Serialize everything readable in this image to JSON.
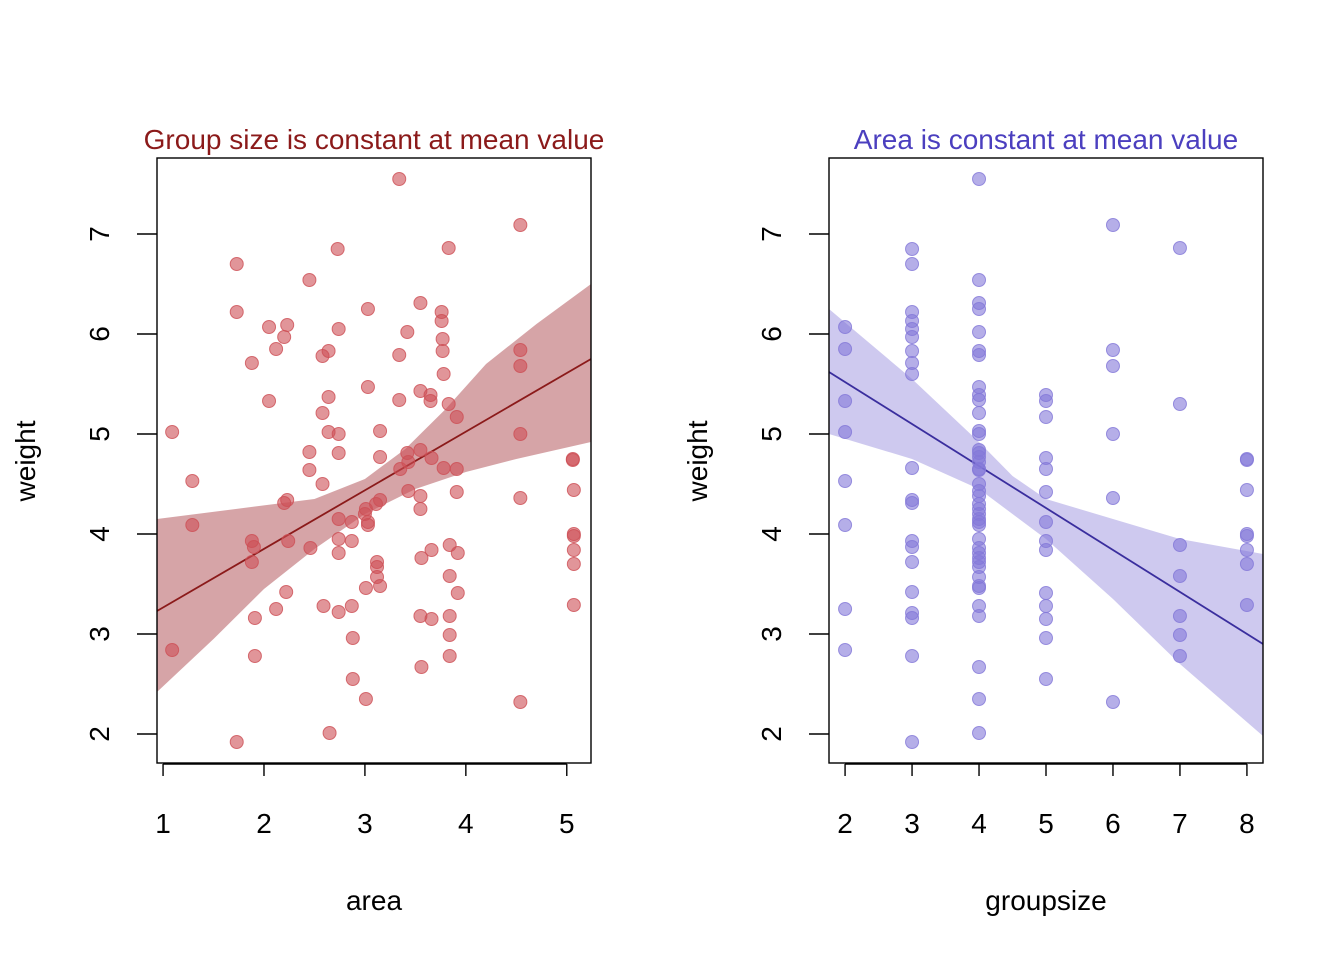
{
  "chart_data": [
    {
      "type": "scatter",
      "title": "Group size is constant at mean value",
      "xlabel": "area",
      "ylabel": "weight",
      "xticks": [
        "1",
        "2",
        "3",
        "4",
        "5"
      ],
      "yticks": [
        "2",
        "3",
        "4",
        "5",
        "6",
        "7"
      ],
      "xlim": [
        0.94,
        5.24
      ],
      "ylim": [
        1.71,
        7.76
      ],
      "colors": {
        "title": "#8b1a1a",
        "points": "#cd4f55",
        "line": "#8b1a1a",
        "band": "#b55a5e"
      },
      "fit_line": [
        [
          0.94,
          3.23
        ],
        [
          5.24,
          5.75
        ]
      ],
      "band_upper": [
        [
          0.94,
          4.15
        ],
        [
          2.5,
          4.35
        ],
        [
          3.0,
          4.55
        ],
        [
          3.4,
          4.85
        ],
        [
          3.8,
          5.25
        ],
        [
          4.2,
          5.7
        ],
        [
          4.7,
          6.1
        ],
        [
          5.24,
          6.5
        ]
      ],
      "band_lower": [
        [
          0.94,
          2.42
        ],
        [
          1.5,
          2.95
        ],
        [
          2.0,
          3.45
        ],
        [
          2.5,
          3.85
        ],
        [
          3.0,
          4.2
        ],
        [
          3.5,
          4.45
        ],
        [
          4.0,
          4.62
        ],
        [
          4.5,
          4.75
        ],
        [
          5.24,
          4.92
        ]
      ],
      "points": [
        [
          1.09,
          5.02
        ],
        [
          1.09,
          2.84
        ],
        [
          1.29,
          4.53
        ],
        [
          1.29,
          4.09
        ],
        [
          1.73,
          6.7
        ],
        [
          1.73,
          6.22
        ],
        [
          1.73,
          1.92
        ],
        [
          1.88,
          5.71
        ],
        [
          1.88,
          3.93
        ],
        [
          1.88,
          3.72
        ],
        [
          1.9,
          3.87
        ],
        [
          1.91,
          3.16
        ],
        [
          1.91,
          2.78
        ],
        [
          2.05,
          6.07
        ],
        [
          2.05,
          5.33
        ],
        [
          2.12,
          5.85
        ],
        [
          2.12,
          3.25
        ],
        [
          2.2,
          5.97
        ],
        [
          2.2,
          4.31
        ],
        [
          2.22,
          3.42
        ],
        [
          2.23,
          6.09
        ],
        [
          2.23,
          4.34
        ],
        [
          2.24,
          3.93
        ],
        [
          2.45,
          6.54
        ],
        [
          2.45,
          4.82
        ],
        [
          2.45,
          4.64
        ],
        [
          2.46,
          3.86
        ],
        [
          2.58,
          5.78
        ],
        [
          2.58,
          5.21
        ],
        [
          2.58,
          4.5
        ],
        [
          2.59,
          3.28
        ],
        [
          2.64,
          5.83
        ],
        [
          2.64,
          5.37
        ],
        [
          2.64,
          5.02
        ],
        [
          2.65,
          2.01
        ],
        [
          2.73,
          6.85
        ],
        [
          2.74,
          6.05
        ],
        [
          2.74,
          5.0
        ],
        [
          2.74,
          4.81
        ],
        [
          2.74,
          4.15
        ],
        [
          2.74,
          3.95
        ],
        [
          2.74,
          3.81
        ],
        [
          2.74,
          3.22
        ],
        [
          2.87,
          4.12
        ],
        [
          2.87,
          3.93
        ],
        [
          2.87,
          3.28
        ],
        [
          2.88,
          2.96
        ],
        [
          2.88,
          2.55
        ],
        [
          3.0,
          4.2
        ],
        [
          3.01,
          4.25
        ],
        [
          3.01,
          3.46
        ],
        [
          3.01,
          2.35
        ],
        [
          3.03,
          6.25
        ],
        [
          3.03,
          5.47
        ],
        [
          3.03,
          4.12
        ],
        [
          3.03,
          4.09
        ],
        [
          3.11,
          4.3
        ],
        [
          3.12,
          3.72
        ],
        [
          3.12,
          3.67
        ],
        [
          3.12,
          3.57
        ],
        [
          3.15,
          5.03
        ],
        [
          3.15,
          4.77
        ],
        [
          3.15,
          4.34
        ],
        [
          3.15,
          3.48
        ],
        [
          3.34,
          7.55
        ],
        [
          3.34,
          5.79
        ],
        [
          3.34,
          5.34
        ],
        [
          3.35,
          4.65
        ],
        [
          3.42,
          6.02
        ],
        [
          3.42,
          4.81
        ],
        [
          3.43,
          4.72
        ],
        [
          3.43,
          4.43
        ],
        [
          3.55,
          6.31
        ],
        [
          3.55,
          5.43
        ],
        [
          3.55,
          4.84
        ],
        [
          3.55,
          4.38
        ],
        [
          3.55,
          4.25
        ],
        [
          3.55,
          3.18
        ],
        [
          3.56,
          3.76
        ],
        [
          3.56,
          2.67
        ],
        [
          3.65,
          5.33
        ],
        [
          3.65,
          5.39
        ],
        [
          3.66,
          4.76
        ],
        [
          3.66,
          3.84
        ],
        [
          3.66,
          3.15
        ],
        [
          3.76,
          6.22
        ],
        [
          3.76,
          6.13
        ],
        [
          3.77,
          5.95
        ],
        [
          3.77,
          5.83
        ],
        [
          3.78,
          5.6
        ],
        [
          3.78,
          4.66
        ],
        [
          3.83,
          6.86
        ],
        [
          3.83,
          5.3
        ],
        [
          3.84,
          3.89
        ],
        [
          3.84,
          3.58
        ],
        [
          3.84,
          3.18
        ],
        [
          3.84,
          2.99
        ],
        [
          3.84,
          2.78
        ],
        [
          3.91,
          5.17
        ],
        [
          3.91,
          4.65
        ],
        [
          3.91,
          4.42
        ],
        [
          3.92,
          3.81
        ],
        [
          3.92,
          3.41
        ],
        [
          4.54,
          7.09
        ],
        [
          4.54,
          5.84
        ],
        [
          4.54,
          5.68
        ],
        [
          4.54,
          5.0
        ],
        [
          4.54,
          4.36
        ],
        [
          4.54,
          2.32
        ],
        [
          5.06,
          4.75
        ],
        [
          5.06,
          4.74
        ],
        [
          5.07,
          4.44
        ],
        [
          5.07,
          4.0
        ],
        [
          5.07,
          3.98
        ],
        [
          5.07,
          3.84
        ],
        [
          5.07,
          3.7
        ],
        [
          5.07,
          3.29
        ]
      ]
    },
    {
      "type": "scatter",
      "title": "Area is constant at mean value",
      "xlabel": "groupsize",
      "ylabel": "weight",
      "xticks": [
        "2",
        "3",
        "4",
        "5",
        "6",
        "7",
        "8"
      ],
      "yticks": [
        "2",
        "3",
        "4",
        "5",
        "6",
        "7"
      ],
      "xlim": [
        1.76,
        8.24
      ],
      "ylim": [
        1.71,
        7.76
      ],
      "colors": {
        "title": "#4b3fbf",
        "points": "#8378d8",
        "line": "#3a2e9e",
        "band": "#a59de2"
      },
      "fit_line": [
        [
          1.76,
          5.62
        ],
        [
          8.24,
          2.9
        ]
      ],
      "band_upper": [
        [
          1.76,
          6.25
        ],
        [
          3.0,
          5.55
        ],
        [
          4.0,
          4.92
        ],
        [
          4.5,
          4.58
        ],
        [
          5.0,
          4.35
        ],
        [
          6.0,
          4.15
        ],
        [
          7.0,
          3.95
        ],
        [
          8.24,
          3.8
        ]
      ],
      "band_lower": [
        [
          1.76,
          5.0
        ],
        [
          3.0,
          4.75
        ],
        [
          4.0,
          4.45
        ],
        [
          5.0,
          3.95
        ],
        [
          6.0,
          3.35
        ],
        [
          7.0,
          2.7
        ],
        [
          8.24,
          1.98
        ]
      ],
      "points": [
        [
          2,
          6.07
        ],
        [
          2,
          5.85
        ],
        [
          2,
          5.33
        ],
        [
          2,
          5.02
        ],
        [
          2,
          4.53
        ],
        [
          2,
          4.09
        ],
        [
          2,
          3.25
        ],
        [
          2,
          2.84
        ],
        [
          3,
          6.85
        ],
        [
          3,
          6.7
        ],
        [
          3,
          6.22
        ],
        [
          3,
          6.13
        ],
        [
          3,
          6.05
        ],
        [
          3,
          5.97
        ],
        [
          3,
          5.83
        ],
        [
          3,
          5.71
        ],
        [
          3,
          5.6
        ],
        [
          3,
          4.66
        ],
        [
          3,
          4.34
        ],
        [
          3,
          4.31
        ],
        [
          3,
          3.93
        ],
        [
          3,
          3.87
        ],
        [
          3,
          3.72
        ],
        [
          3,
          3.42
        ],
        [
          3,
          3.21
        ],
        [
          3,
          3.16
        ],
        [
          3,
          2.78
        ],
        [
          3,
          1.92
        ],
        [
          4,
          7.55
        ],
        [
          4,
          6.54
        ],
        [
          4,
          6.31
        ],
        [
          4,
          6.25
        ],
        [
          4,
          6.02
        ],
        [
          4,
          5.83
        ],
        [
          4,
          5.79
        ],
        [
          4,
          5.47
        ],
        [
          4,
          5.39
        ],
        [
          4,
          5.34
        ],
        [
          4,
          5.21
        ],
        [
          4,
          5.03
        ],
        [
          4,
          5.0
        ],
        [
          4,
          4.84
        ],
        [
          4,
          4.81
        ],
        [
          4,
          4.77
        ],
        [
          4,
          4.72
        ],
        [
          4,
          4.65
        ],
        [
          4,
          4.64
        ],
        [
          4,
          4.5
        ],
        [
          4,
          4.43
        ],
        [
          4,
          4.38
        ],
        [
          4,
          4.3
        ],
        [
          4,
          4.25
        ],
        [
          4,
          4.2
        ],
        [
          4,
          4.15
        ],
        [
          4,
          4.12
        ],
        [
          4,
          4.09
        ],
        [
          4,
          3.95
        ],
        [
          4,
          3.86
        ],
        [
          4,
          3.81
        ],
        [
          4,
          3.76
        ],
        [
          4,
          3.72
        ],
        [
          4,
          3.67
        ],
        [
          4,
          3.57
        ],
        [
          4,
          3.48
        ],
        [
          4,
          3.46
        ],
        [
          4,
          3.28
        ],
        [
          4,
          3.18
        ],
        [
          4,
          2.67
        ],
        [
          4,
          2.35
        ],
        [
          4,
          2.01
        ],
        [
          5,
          5.39
        ],
        [
          5,
          5.33
        ],
        [
          5,
          5.17
        ],
        [
          5,
          4.76
        ],
        [
          5,
          4.65
        ],
        [
          5,
          4.42
        ],
        [
          5,
          4.12
        ],
        [
          5,
          3.93
        ],
        [
          5,
          3.84
        ],
        [
          5,
          3.41
        ],
        [
          5,
          3.28
        ],
        [
          5,
          3.15
        ],
        [
          5,
          2.96
        ],
        [
          5,
          2.55
        ],
        [
          6,
          7.09
        ],
        [
          6,
          5.84
        ],
        [
          6,
          5.68
        ],
        [
          6,
          5.0
        ],
        [
          6,
          4.36
        ],
        [
          6,
          2.32
        ],
        [
          7,
          6.86
        ],
        [
          7,
          5.3
        ],
        [
          7,
          3.89
        ],
        [
          7,
          3.58
        ],
        [
          7,
          3.18
        ],
        [
          7,
          2.99
        ],
        [
          7,
          2.78
        ],
        [
          8,
          4.75
        ],
        [
          8,
          4.74
        ],
        [
          8,
          4.44
        ],
        [
          8,
          4.0
        ],
        [
          8,
          3.98
        ],
        [
          8,
          3.84
        ],
        [
          8,
          3.7
        ],
        [
          8,
          3.29
        ]
      ]
    }
  ]
}
